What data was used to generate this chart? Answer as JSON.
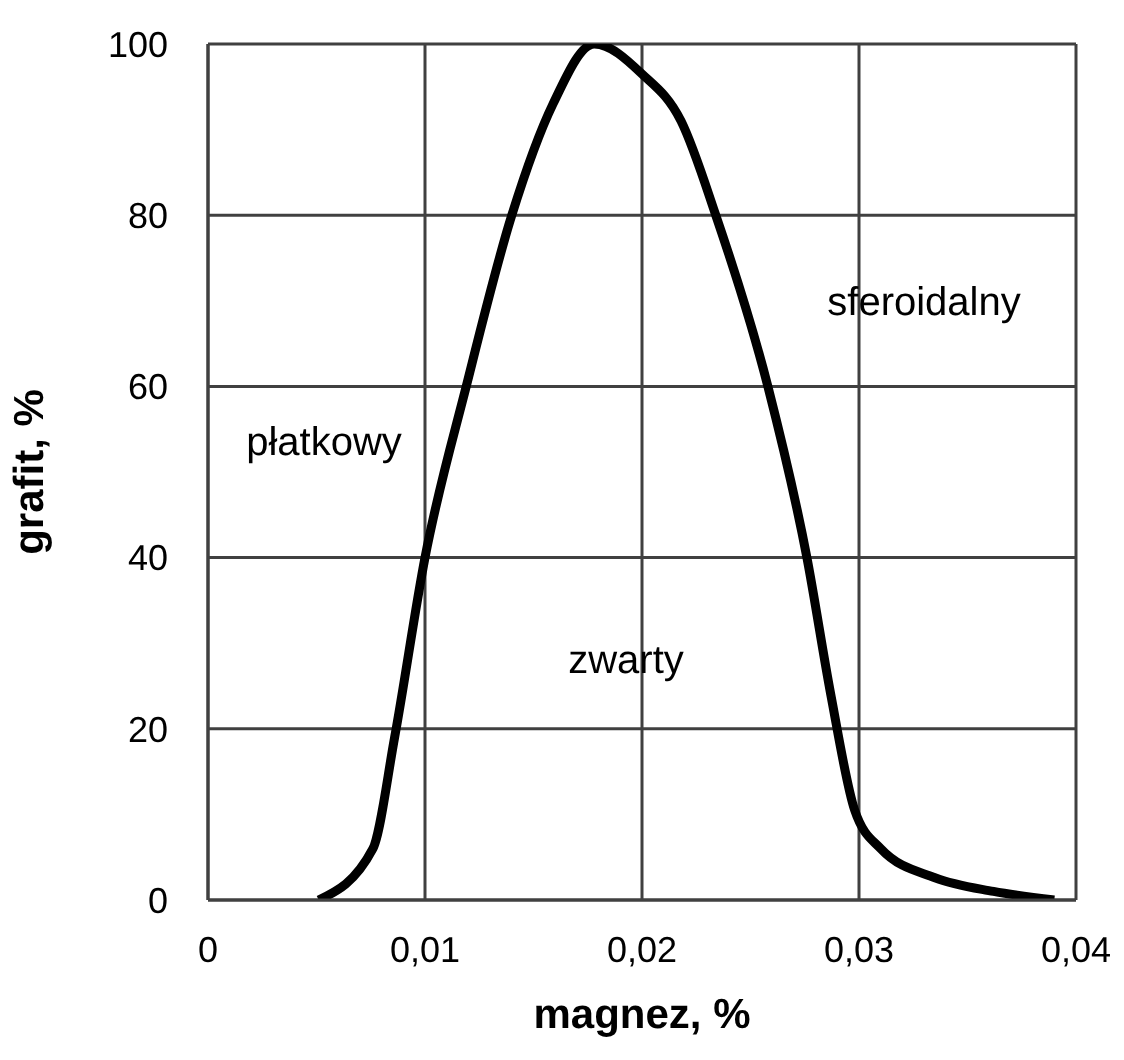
{
  "chart_data": {
    "type": "line",
    "xlabel": "magnez, %",
    "ylabel": "grafit, %",
    "xlim": [
      0,
      0.04
    ],
    "xticks": [
      0,
      {
        "value": 0.01,
        "label": "0,01"
      },
      {
        "value": 0.02,
        "label": "0,02"
      },
      {
        "value": 0.03,
        "label": "0,03"
      },
      {
        "value": 0.04,
        "label": "0,04"
      }
    ],
    "ylim": [
      0,
      100
    ],
    "yticks": [
      0,
      20,
      40,
      60,
      80,
      100
    ],
    "grid": true,
    "marker": "none",
    "line_style": "solid",
    "series": [
      {
        "color": "#000000",
        "x": [
          0.0051,
          0.0076,
          0.0086,
          0.01,
          0.0119,
          0.014,
          0.0159,
          0.0178,
          0.02,
          0.0218,
          0.0234,
          0.0258,
          0.0276,
          0.0287,
          0.0298,
          0.031,
          0.0335,
          0.0362,
          0.039
        ],
        "values": [
          0,
          6,
          19,
          40,
          60,
          80,
          93,
          100,
          96.5,
          91,
          80,
          60,
          40,
          24,
          10.5,
          6,
          2.6,
          1,
          0
        ]
      }
    ],
    "annotations": [
      "płatkowy",
      "zwarty",
      "sferoidalny"
    ]
  }
}
